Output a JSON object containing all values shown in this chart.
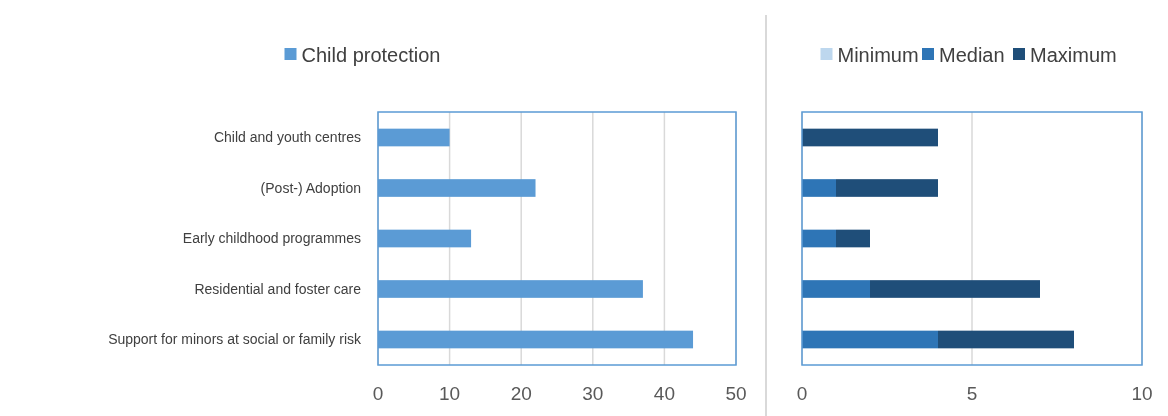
{
  "chart_data": [
    {
      "type": "bar",
      "orientation": "horizontal",
      "categories": [
        "Child and youth centres",
        "(Post-) Adoption",
        "Early childhood programmes",
        "Residential and foster care",
        "Support for minors at social or family risk"
      ],
      "series": [
        {
          "name": "Child protection",
          "color": "#5b9bd5",
          "values": [
            10,
            22,
            13,
            37,
            44
          ]
        }
      ],
      "xlim": [
        0,
        50
      ],
      "xticks": [
        0,
        10,
        20,
        30,
        40,
        50
      ],
      "grid": "x",
      "legend": "top"
    },
    {
      "type": "bar",
      "orientation": "horizontal",
      "stacked": true,
      "categories": [
        null,
        null,
        null,
        null,
        null
      ],
      "series": [
        {
          "name": "Minimum",
          "color": "#bdd7ee",
          "values": [
            0,
            0,
            0,
            0,
            0
          ]
        },
        {
          "name": "Median",
          "color": "#2e75b6",
          "values": [
            0,
            1,
            1,
            2,
            4
          ]
        },
        {
          "name": "Maximum",
          "color": "#1f4e79",
          "values": [
            4,
            3,
            1,
            5,
            4
          ]
        }
      ],
      "xlim": [
        0,
        10
      ],
      "xticks": [
        0,
        5,
        10
      ],
      "grid": "x",
      "legend": "top"
    }
  ]
}
